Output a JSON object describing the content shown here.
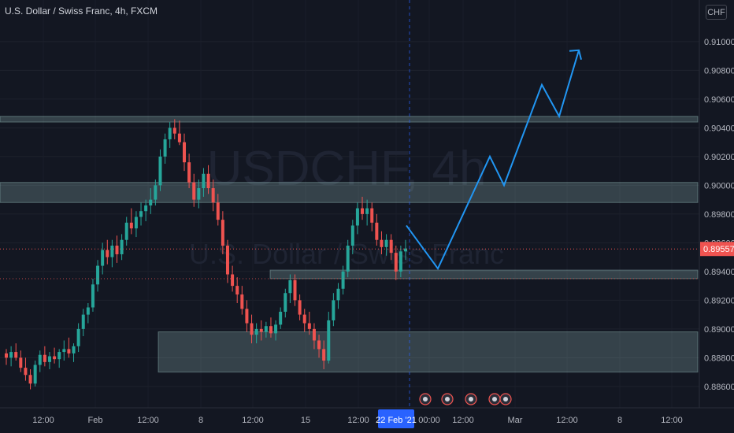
{
  "symbol_legend": "U.S. Dollar / Swiss Franc, 4h, FXCM",
  "currency_button": "CHF",
  "watermark": {
    "line1": "USDCHF, 4h",
    "line2": "U.S. Dollar / Swiss Franc"
  },
  "colors": {
    "background": "#131722",
    "up": "#26a69a",
    "down": "#ef5350",
    "projection": "#2196f3",
    "zone": "#b2dfdb"
  },
  "chart_data": {
    "type": "candlestick",
    "ylim": [
      0.8855,
      0.9118
    ],
    "y_ticks": [
      "0.91000",
      "0.90800",
      "0.90600",
      "0.90400",
      "0.90200",
      "0.90000",
      "0.89800",
      "0.89600",
      "0.89400",
      "0.89200",
      "0.89000",
      "0.88800",
      "0.88600"
    ],
    "x_ticks": [
      "12:00",
      "Feb",
      "12:00",
      "8",
      "12:00",
      "15",
      "12:00",
      "22 Feb '21",
      "00:00",
      "12:00",
      "Mar",
      "12:00",
      "8",
      "12:00"
    ],
    "current_price": {
      "value": 0.89557,
      "label": "0.89557"
    },
    "crosshair_label": "22 Feb '21",
    "candles": [
      [
        0.8883,
        0.8886,
        0.8875,
        0.888
      ],
      [
        0.888,
        0.8888,
        0.8874,
        0.8884
      ],
      [
        0.8884,
        0.889,
        0.8878,
        0.888
      ],
      [
        0.888,
        0.8885,
        0.887,
        0.8873
      ],
      [
        0.8873,
        0.888,
        0.8864,
        0.8868
      ],
      [
        0.8868,
        0.8872,
        0.8858,
        0.8862
      ],
      [
        0.8862,
        0.8878,
        0.886,
        0.8875
      ],
      [
        0.8875,
        0.8885,
        0.887,
        0.8882
      ],
      [
        0.8882,
        0.8888,
        0.8874,
        0.8877
      ],
      [
        0.8877,
        0.8884,
        0.8872,
        0.8881
      ],
      [
        0.8881,
        0.8887,
        0.8876,
        0.8879
      ],
      [
        0.8879,
        0.8886,
        0.8873,
        0.8884
      ],
      [
        0.8884,
        0.8892,
        0.8878,
        0.8886
      ],
      [
        0.8886,
        0.8894,
        0.888,
        0.8883
      ],
      [
        0.8883,
        0.889,
        0.8877,
        0.8888
      ],
      [
        0.8888,
        0.8904,
        0.8884,
        0.89
      ],
      [
        0.89,
        0.8914,
        0.8895,
        0.891
      ],
      [
        0.891,
        0.8918,
        0.8904,
        0.8915
      ],
      [
        0.8915,
        0.8935,
        0.8912,
        0.8931
      ],
      [
        0.8931,
        0.8948,
        0.8926,
        0.8944
      ],
      [
        0.8944,
        0.896,
        0.8938,
        0.8955
      ],
      [
        0.8955,
        0.8962,
        0.8945,
        0.895
      ],
      [
        0.895,
        0.8962,
        0.8943,
        0.8958
      ],
      [
        0.8958,
        0.8965,
        0.8946,
        0.8952
      ],
      [
        0.8952,
        0.8966,
        0.8948,
        0.8962
      ],
      [
        0.8962,
        0.8978,
        0.8958,
        0.8974
      ],
      [
        0.8974,
        0.8984,
        0.8966,
        0.897
      ],
      [
        0.897,
        0.8982,
        0.8964,
        0.8978
      ],
      [
        0.8978,
        0.8988,
        0.8972,
        0.8982
      ],
      [
        0.8982,
        0.899,
        0.8975,
        0.8986
      ],
      [
        0.8986,
        0.8998,
        0.898,
        0.899
      ],
      [
        0.899,
        0.9004,
        0.8986,
        0.9
      ],
      [
        0.9,
        0.9025,
        0.8996,
        0.902
      ],
      [
        0.902,
        0.9036,
        0.9015,
        0.9032
      ],
      [
        0.9032,
        0.9044,
        0.9026,
        0.904
      ],
      [
        0.904,
        0.9046,
        0.9032,
        0.9036
      ],
      [
        0.9036,
        0.9045,
        0.9028,
        0.903
      ],
      [
        0.903,
        0.9036,
        0.901,
        0.9016
      ],
      [
        0.9016,
        0.9022,
        0.8998,
        0.9002
      ],
      [
        0.9002,
        0.9008,
        0.8985,
        0.899
      ],
      [
        0.899,
        0.9004,
        0.8984,
        0.8998
      ],
      [
        0.8998,
        0.9012,
        0.8992,
        0.9008
      ],
      [
        0.9008,
        0.9014,
        0.8994,
        0.8998
      ],
      [
        0.8998,
        0.9004,
        0.8982,
        0.8988
      ],
      [
        0.8988,
        0.8994,
        0.8972,
        0.8976
      ],
      [
        0.8976,
        0.8982,
        0.8952,
        0.8958
      ],
      [
        0.8958,
        0.8962,
        0.8932,
        0.8938
      ],
      [
        0.8938,
        0.8944,
        0.8926,
        0.893
      ],
      [
        0.893,
        0.8936,
        0.8918,
        0.8924
      ],
      [
        0.8924,
        0.893,
        0.891,
        0.8914
      ],
      [
        0.8914,
        0.892,
        0.8898,
        0.8904
      ],
      [
        0.8904,
        0.891,
        0.889,
        0.8896
      ],
      [
        0.8896,
        0.8904,
        0.889,
        0.89
      ],
      [
        0.89,
        0.8906,
        0.8892,
        0.8898
      ],
      [
        0.8898,
        0.8905,
        0.8894,
        0.8902
      ],
      [
        0.8902,
        0.8908,
        0.8894,
        0.8897
      ],
      [
        0.8897,
        0.8906,
        0.8892,
        0.8903
      ],
      [
        0.8903,
        0.8915,
        0.89,
        0.8912
      ],
      [
        0.8912,
        0.8928,
        0.8908,
        0.8925
      ],
      [
        0.8925,
        0.8938,
        0.8918,
        0.8934
      ],
      [
        0.8934,
        0.8938,
        0.8916,
        0.892
      ],
      [
        0.892,
        0.8924,
        0.8906,
        0.891
      ],
      [
        0.891,
        0.8914,
        0.8898,
        0.8904
      ],
      [
        0.8904,
        0.8912,
        0.8896,
        0.89
      ],
      [
        0.89,
        0.8904,
        0.8886,
        0.8892
      ],
      [
        0.8892,
        0.8896,
        0.888,
        0.8886
      ],
      [
        0.8886,
        0.8892,
        0.8872,
        0.8878
      ],
      [
        0.8878,
        0.8912,
        0.8876,
        0.8906
      ],
      [
        0.8906,
        0.8925,
        0.8902,
        0.892
      ],
      [
        0.892,
        0.8932,
        0.8914,
        0.8928
      ],
      [
        0.8928,
        0.8944,
        0.8924,
        0.894
      ],
      [
        0.894,
        0.8962,
        0.8936,
        0.8958
      ],
      [
        0.8958,
        0.8976,
        0.8952,
        0.8972
      ],
      [
        0.8972,
        0.8988,
        0.8966,
        0.8984
      ],
      [
        0.8984,
        0.8992,
        0.8976,
        0.898
      ],
      [
        0.898,
        0.899,
        0.8972,
        0.8984
      ],
      [
        0.8984,
        0.8988,
        0.8968,
        0.8974
      ],
      [
        0.8974,
        0.898,
        0.8958,
        0.8962
      ],
      [
        0.8962,
        0.8968,
        0.8952,
        0.8957
      ],
      [
        0.8957,
        0.8966,
        0.8951,
        0.8962
      ],
      [
        0.8962,
        0.8966,
        0.8948,
        0.8953
      ],
      [
        0.8953,
        0.8958,
        0.8934,
        0.894
      ],
      [
        0.894,
        0.8958,
        0.8936,
        0.8954
      ],
      [
        0.8954,
        0.8962,
        0.8948,
        0.8956
      ]
    ],
    "zones": [
      {
        "y1": 0.9044,
        "y2": 0.9048
      },
      {
        "y1": 0.8988,
        "y2": 0.9002
      },
      {
        "y1": 0.8935,
        "y2": 0.8941
      },
      {
        "y1": 0.887,
        "y2": 0.8898
      }
    ],
    "projection_path": [
      [
        0.8972
      ],
      [
        0.8942
      ],
      [
        0.902
      ],
      [
        0.9
      ],
      [
        0.907
      ],
      [
        0.9048
      ],
      [
        0.9094
      ]
    ]
  }
}
